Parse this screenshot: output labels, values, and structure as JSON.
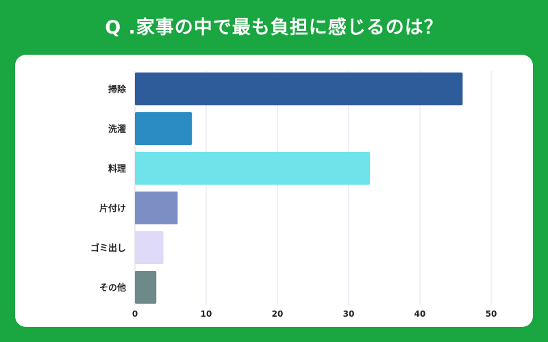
{
  "title": "Q .家事の中で最も負担に感じるのは？",
  "chart_data": {
    "type": "bar",
    "orientation": "horizontal",
    "title": "Q .家事の中で最も負担に感じるのは？",
    "categories": [
      "掃除",
      "洗濯",
      "料理",
      "片付け",
      "ゴミ出し",
      "その他"
    ],
    "values": [
      46,
      8,
      33,
      6,
      4,
      3
    ],
    "colors": [
      "#2e5b9a",
      "#2b8cc4",
      "#6ee4ea",
      "#7c8fc4",
      "#dedaf8",
      "#6e8a88"
    ],
    "xlim": [
      0,
      50
    ],
    "xticks": [
      "0",
      "10",
      "20",
      "30",
      "40",
      "50"
    ],
    "grid": true,
    "xlabel": "",
    "ylabel": ""
  }
}
